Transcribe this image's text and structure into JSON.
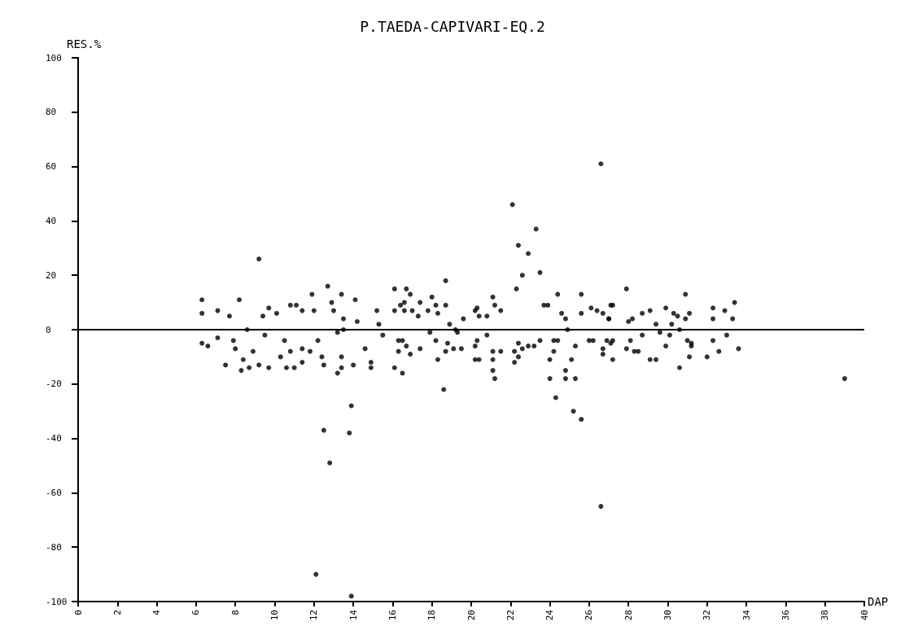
{
  "chart_data": {
    "type": "scatter",
    "title": "P.TAEDA-CAPIVARI-EQ.2",
    "xlabel": "DAP",
    "ylabel": "RES.%",
    "marker": "circle",
    "grid": false,
    "xlim": [
      0,
      40
    ],
    "xticks": [
      0,
      2,
      4,
      6,
      8,
      10,
      12,
      14,
      16,
      18,
      20,
      22,
      24,
      26,
      28,
      30,
      32,
      34,
      36,
      38,
      40
    ],
    "ylim": [
      -100,
      100
    ],
    "yticks": [
      -100,
      -80,
      -60,
      -40,
      -20,
      0,
      20,
      40,
      60,
      80,
      100
    ],
    "ref_lines": [
      {
        "axis": "y",
        "value": 0,
        "color": "#000000"
      }
    ],
    "series": [
      {
        "color": "#000000",
        "x": [
          9.2,
          12.5,
          12.8,
          13.8,
          13.9,
          13.9,
          12.1,
          18.7,
          18.6,
          22.1,
          22.4,
          22.9,
          23.3,
          23.5,
          22.6,
          22.3,
          25.6,
          24.3,
          25.2,
          25.6,
          26.6,
          26.6,
          39.0,
          6.3,
          6.3,
          6.3,
          6.6,
          7.1,
          7.1,
          7.5,
          7.7,
          7.9,
          8.0,
          8.2,
          8.3,
          8.4,
          8.7,
          8.9,
          9.2,
          9.4,
          9.5,
          9.7,
          9.7,
          10.1,
          10.3,
          10.5,
          10.6,
          10.8,
          11.0,
          10.8,
          11.1,
          11.4,
          11.4,
          11.4,
          11.8,
          11.9,
          12.0,
          12.2,
          12.4,
          12.5,
          12.7,
          12.9,
          13.0,
          13.2,
          13.4,
          13.4,
          13.4,
          13.2,
          13.5,
          14.0,
          14.1,
          14.2,
          14.6,
          14.9,
          14.9,
          15.2,
          15.3,
          15.5,
          16.1,
          16.1,
          16.3,
          16.5,
          16.7,
          16.4,
          16.9,
          16.6,
          16.1,
          16.6,
          17.0,
          17.3,
          17.4,
          18.0,
          17.8,
          18.2,
          18.3,
          18.7,
          18.9,
          19.6,
          20.2,
          20.3,
          20.4,
          20.8,
          21.1,
          21.2,
          21.5,
          23.7,
          23.9,
          24.4,
          24.6,
          24.8,
          25.6,
          26.1,
          26.4,
          27.0,
          27.1,
          16.3,
          16.7,
          16.9,
          17.4,
          16.5,
          17.9,
          18.2,
          18.3,
          18.7,
          18.8,
          19.1,
          19.5,
          19.3,
          20.2,
          20.3,
          20.2,
          20.4,
          20.8,
          21.1,
          21.1,
          21.1,
          21.2,
          21.5,
          22.2,
          22.2,
          22.4,
          22.4,
          22.6,
          22.9,
          23.2,
          23.5,
          24.0,
          24.0,
          24.2,
          24.4,
          24.2,
          24.8,
          24.8,
          25.3,
          25.1,
          25.3,
          26.0,
          26.2,
          26.7,
          26.7,
          26.9,
          27.2,
          27.2,
          27.9,
          30.9,
          27.2,
          26.7,
          27.0,
          28.0,
          28.2,
          28.7,
          29.1,
          29.9,
          30.3,
          30.5,
          30.9,
          31.1,
          32.3,
          32.3,
          32.9,
          33.4,
          33.3,
          29.4,
          30.2,
          27.1,
          27.9,
          28.1,
          28.3,
          28.5,
          28.7,
          29.1,
          29.4,
          29.6,
          29.9,
          30.1,
          30.6,
          31.0,
          31.1,
          31.2,
          31.2,
          32.0,
          32.3,
          32.6,
          33.0,
          33.6,
          8.6,
          13.5,
          19.2,
          24.9,
          30.6
        ],
        "values": [
          26,
          -37,
          -49,
          -38,
          -28,
          -98,
          -90,
          18,
          -22,
          46,
          31,
          28,
          37,
          21,
          20,
          15,
          13,
          -25,
          -30,
          -33,
          61,
          -65,
          -18,
          11,
          6,
          -5,
          -6,
          7,
          -3,
          -13,
          5,
          -4,
          -7,
          11,
          -15,
          -11,
          -14,
          -8,
          -13,
          5,
          -2,
          -14,
          8,
          6,
          -10,
          -4,
          -14,
          -8,
          -14,
          9,
          9,
          7,
          -7,
          -12,
          -8,
          13,
          7,
          -4,
          -10,
          -13,
          16,
          10,
          7,
          -1,
          -10,
          13,
          -14,
          -16,
          4,
          -13,
          11,
          3,
          -7,
          -12,
          -14,
          7,
          2,
          -2,
          -14,
          15,
          -4,
          -16,
          15,
          9,
          13,
          10,
          7,
          7,
          7,
          5,
          10,
          12,
          7,
          9,
          6,
          9,
          2,
          4,
          7,
          8,
          5,
          5,
          12,
          9,
          7,
          9,
          9,
          13,
          6,
          4,
          6,
          8,
          7,
          4,
          9,
          -8,
          -6,
          -9,
          -7,
          -4,
          -1,
          -4,
          -11,
          -8,
          -5,
          -7,
          -7,
          -1,
          -6,
          -4,
          -11,
          -11,
          -2,
          -8,
          -11,
          -15,
          -18,
          -8,
          -8,
          -12,
          -10,
          -5,
          -7,
          -6,
          -6,
          -4,
          -11,
          -18,
          -4,
          -4,
          -8,
          -15,
          -18,
          -18,
          -11,
          -6,
          -4,
          -4,
          -7,
          -9,
          -4,
          -4,
          -11,
          15,
          13,
          9,
          6,
          4,
          3,
          4,
          6,
          7,
          8,
          6,
          5,
          4,
          6,
          8,
          4,
          7,
          10,
          4,
          2,
          2,
          -5,
          -7,
          -4,
          -8,
          -8,
          -2,
          -11,
          -11,
          -1,
          -6,
          -2,
          -14,
          -4,
          -10,
          -6,
          -5,
          -10,
          -4,
          -8,
          -2,
          -7,
          0,
          0,
          0,
          0,
          0
        ]
      }
    ]
  }
}
